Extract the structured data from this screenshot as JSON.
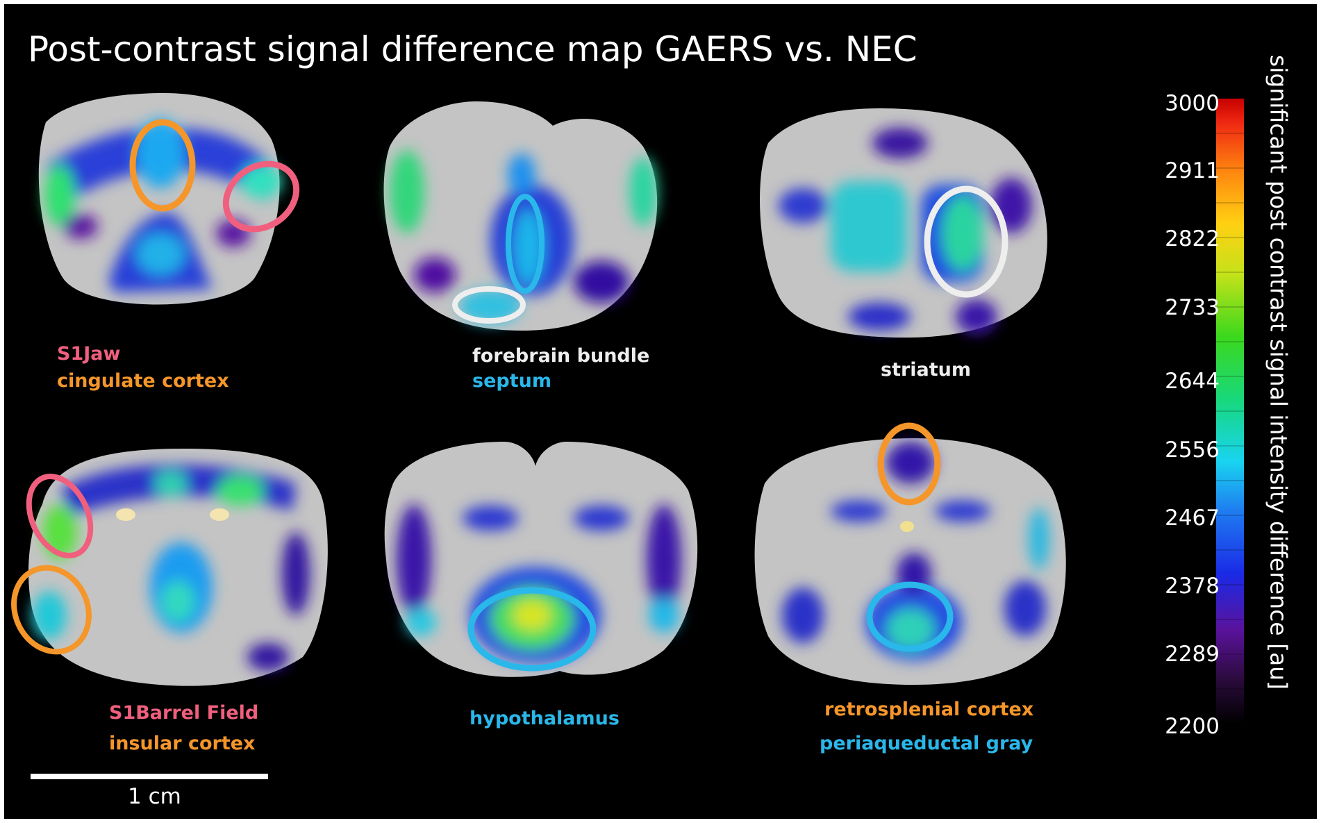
{
  "title": "Post-contrast signal difference map GAERS vs. NEC",
  "colors": {
    "background": "#000000",
    "tissue": "#bdbdbd",
    "pink": "#f0607e",
    "orange": "#f5962a",
    "cyan": "#2ab7ea",
    "white": "#eeeeee"
  },
  "panels": [
    {
      "labels": [
        {
          "text": "S1Jaw",
          "color": "pink"
        },
        {
          "text": "cingulate cortex",
          "color": "orange"
        }
      ]
    },
    {
      "labels": [
        {
          "text": "forebrain bundle",
          "color": "white"
        },
        {
          "text": "septum",
          "color": "cyan"
        }
      ]
    },
    {
      "labels": [
        {
          "text": "striatum",
          "color": "white"
        }
      ]
    },
    {
      "labels": [
        {
          "text": "S1Barrel Field",
          "color": "pink"
        },
        {
          "text": "insular cortex",
          "color": "orange"
        }
      ]
    },
    {
      "labels": [
        {
          "text": "hypothalamus",
          "color": "cyan"
        }
      ]
    },
    {
      "labels": [
        {
          "text": "retrosplenial cortex",
          "color": "orange"
        },
        {
          "text": "periaqueductal gray",
          "color": "cyan"
        }
      ]
    }
  ],
  "colorbar": {
    "ticks": [
      "3000",
      "2911",
      "2822",
      "2733",
      "2644",
      "2556",
      "2467",
      "2378",
      "2289",
      "2200"
    ],
    "title": "significant post contrast signal intensity difference [au]",
    "range": [
      2200,
      3000
    ]
  },
  "scale_bar": {
    "label": "1 cm"
  }
}
